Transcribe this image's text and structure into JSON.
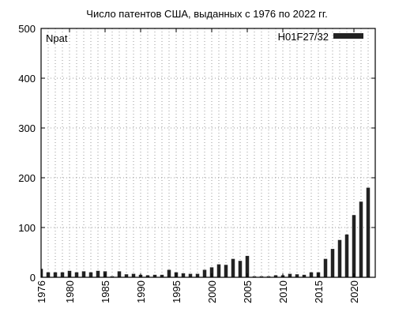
{
  "chart_data": {
    "type": "bar",
    "title": "Число патентов США, выданных с 1976 по 2022 гг.",
    "xlabel": "",
    "ylabel": "Npat",
    "ylim": [
      0,
      500
    ],
    "xlim": [
      1976,
      2023
    ],
    "yticks": [
      0,
      100,
      200,
      300,
      400,
      500
    ],
    "xticks": [
      1976,
      1980,
      1985,
      1990,
      1995,
      2000,
      2005,
      2010,
      2015,
      2020
    ],
    "grid": true,
    "legend_position": "top-right",
    "bar_color": "#222222",
    "series": [
      {
        "name": "H01F27/32",
        "x": [
          1976,
          1977,
          1978,
          1979,
          1980,
          1981,
          1982,
          1983,
          1984,
          1985,
          1986,
          1987,
          1988,
          1989,
          1990,
          1991,
          1992,
          1993,
          1994,
          1995,
          1996,
          1997,
          1998,
          1999,
          2000,
          2001,
          2002,
          2003,
          2004,
          2005,
          2006,
          2007,
          2008,
          2009,
          2010,
          2011,
          2012,
          2013,
          2014,
          2015,
          2016,
          2017,
          2018,
          2019,
          2020,
          2021,
          2022
        ],
        "values": [
          17,
          10,
          10,
          10,
          13,
          10,
          12,
          10,
          13,
          12,
          2,
          12,
          6,
          7,
          5,
          4,
          5,
          5,
          15,
          10,
          8,
          7,
          7,
          15,
          20,
          26,
          25,
          37,
          33,
          43,
          2,
          2,
          2,
          4,
          4,
          7,
          6,
          5,
          10,
          10,
          37,
          57,
          75,
          86,
          125,
          152,
          180
        ]
      }
    ]
  }
}
